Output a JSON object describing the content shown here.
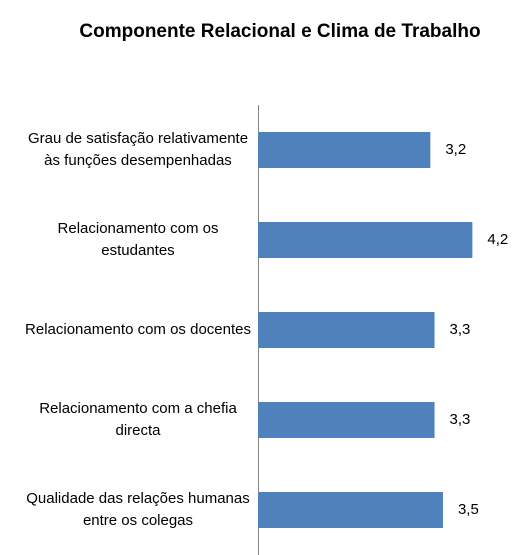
{
  "chart_data": {
    "type": "bar",
    "orientation": "horizontal",
    "title": "Componente Relacional e Clima de Trabalho",
    "categories": [
      "Grau de satisfação relativamente às funções desempenhadas",
      "Relacionamento com os estudantes",
      "Relacionamento com os docentes",
      "Relacionamento com a chefia directa",
      "Qualidade das relações humanas entre os colegas"
    ],
    "values": [
      3.2,
      4.2,
      3.3,
      3.3,
      3.5
    ],
    "value_labels": [
      "3,2",
      "4,2",
      "3,3",
      "3,3",
      "3,5"
    ],
    "color": "#4f81bd",
    "xlim": [
      -0.9,
      5
    ]
  }
}
